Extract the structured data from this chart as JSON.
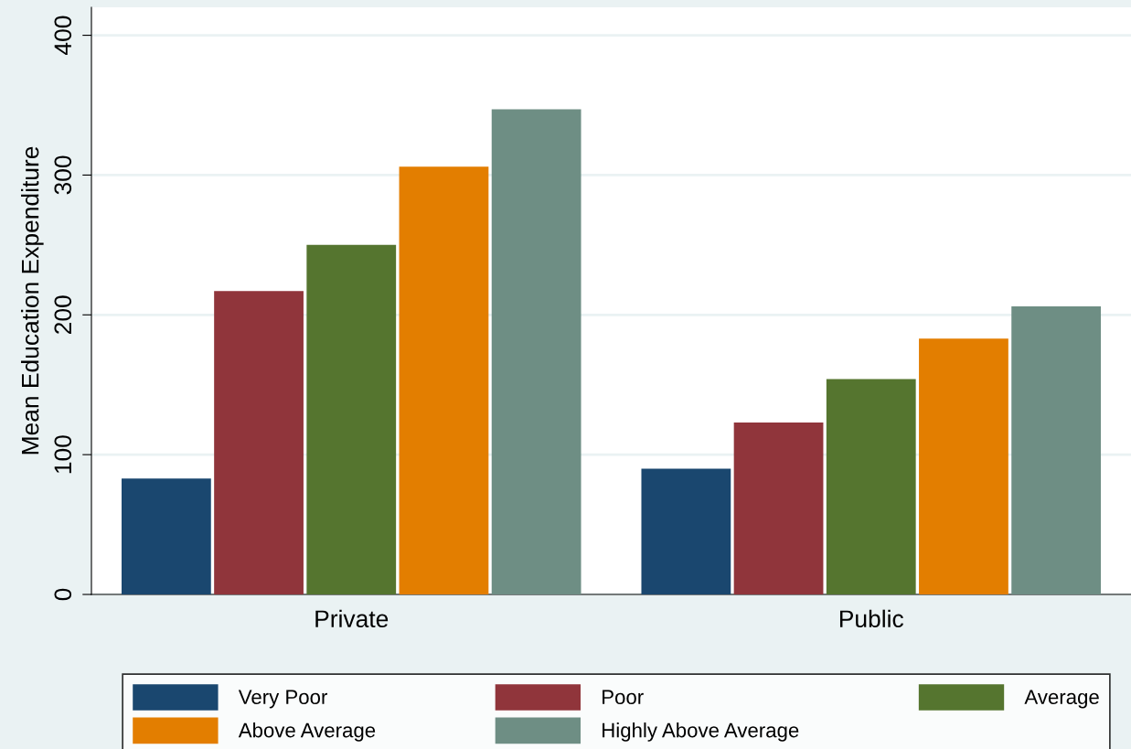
{
  "chart_data": {
    "type": "bar",
    "ylabel": "Mean Education Expenditure",
    "categories": [
      "Private",
      "Public"
    ],
    "series": [
      {
        "name": "Very Poor",
        "color": "#1a476f",
        "values": [
          83,
          90
        ]
      },
      {
        "name": "Poor",
        "color": "#90353b",
        "values": [
          217,
          123
        ]
      },
      {
        "name": "Average",
        "color": "#55752f",
        "values": [
          250,
          154
        ]
      },
      {
        "name": "Above Average",
        "color": "#e37e00",
        "values": [
          306,
          183
        ]
      },
      {
        "name": "Highly Above Average",
        "color": "#6e8e84",
        "values": [
          347,
          206
        ]
      }
    ],
    "ylim": [
      0,
      420
    ],
    "yticks": [
      0,
      100,
      200,
      300,
      400
    ],
    "grid": "y",
    "legend": "bottom"
  }
}
